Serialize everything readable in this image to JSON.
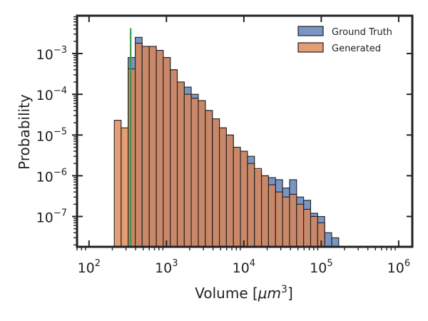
{
  "chart_data": {
    "type": "bar",
    "histogram": true,
    "xlabel": "Volume [$\\mu m^3$]",
    "xlabel_parts": {
      "prefix": "Volume [",
      "italic": "μm",
      "sup": "3",
      "suffix": "]"
    },
    "ylabel": "Probability",
    "x_scale": "log",
    "y_scale": "log",
    "xlim": [
      70,
      1500000
    ],
    "ylim": [
      1.8e-08,
      0.0085
    ],
    "x_ticks": [
      {
        "value": 100,
        "base": "10",
        "exp": "2"
      },
      {
        "value": 1000,
        "base": "10",
        "exp": "3"
      },
      {
        "value": 10000,
        "base": "10",
        "exp": "4"
      },
      {
        "value": 100000,
        "base": "10",
        "exp": "5"
      },
      {
        "value": 1000000,
        "base": "10",
        "exp": "6"
      }
    ],
    "y_ticks": [
      {
        "value": 1e-07,
        "base": "10",
        "exp": "−7"
      },
      {
        "value": 1e-06,
        "base": "10",
        "exp": "−6"
      },
      {
        "value": 1e-05,
        "base": "10",
        "exp": "−5"
      },
      {
        "value": 0.0001,
        "base": "10",
        "exp": "−4"
      },
      {
        "value": 0.001,
        "base": "10",
        "exp": "−3"
      }
    ],
    "legend": {
      "placement": "top-right"
    },
    "bin_edges": [
      212,
      260,
      320,
      395,
      485,
      600,
      740,
      910,
      1120,
      1380,
      1700,
      2090,
      2580,
      3180,
      3920,
      4830,
      5950,
      7330,
      9030,
      11130,
      13710,
      16900,
      20820,
      25660,
      31620,
      38960,
      48000,
      59150,
      72890,
      89820,
      110700,
      136400,
      168100,
      207100
    ],
    "series": [
      {
        "name": "Ground Truth",
        "color": "#4c72b0",
        "values": [
          0,
          0,
          0.0008,
          0.0025,
          0.0015,
          0.0015,
          0.0012,
          0.0008,
          0.0004,
          0.0002,
          0.00015,
          0.0001,
          7e-05,
          4e-05,
          2.5e-05,
          1.5e-05,
          1e-05,
          5e-06,
          4e-06,
          3e-06,
          1.3e-06,
          1e-06,
          9e-07,
          8e-07,
          5e-07,
          8e-07,
          3e-07,
          2.5e-07,
          1.2e-07,
          1e-07,
          4e-08,
          3e-08,
          0,
          2.2e-08
        ]
      },
      {
        "name": "Generated",
        "color": "#dd8452",
        "values": [
          2.3e-05,
          1.5e-05,
          0.00042,
          0.0018,
          0.0015,
          0.0015,
          0.0012,
          0.0008,
          0.0004,
          0.0002,
          0.0001,
          8e-05,
          7e-05,
          4e-05,
          2.5e-05,
          1.5e-05,
          1e-05,
          5e-06,
          4e-06,
          2e-06,
          1.5e-06,
          1e-06,
          6e-07,
          4e-07,
          3e-07,
          3.5e-07,
          2e-07,
          1.5e-07,
          1e-07,
          7e-08,
          0,
          0,
          0,
          0
        ]
      }
    ],
    "vline": {
      "x": 345,
      "y_top": 0.0042,
      "color": "#3a9a4a"
    }
  }
}
